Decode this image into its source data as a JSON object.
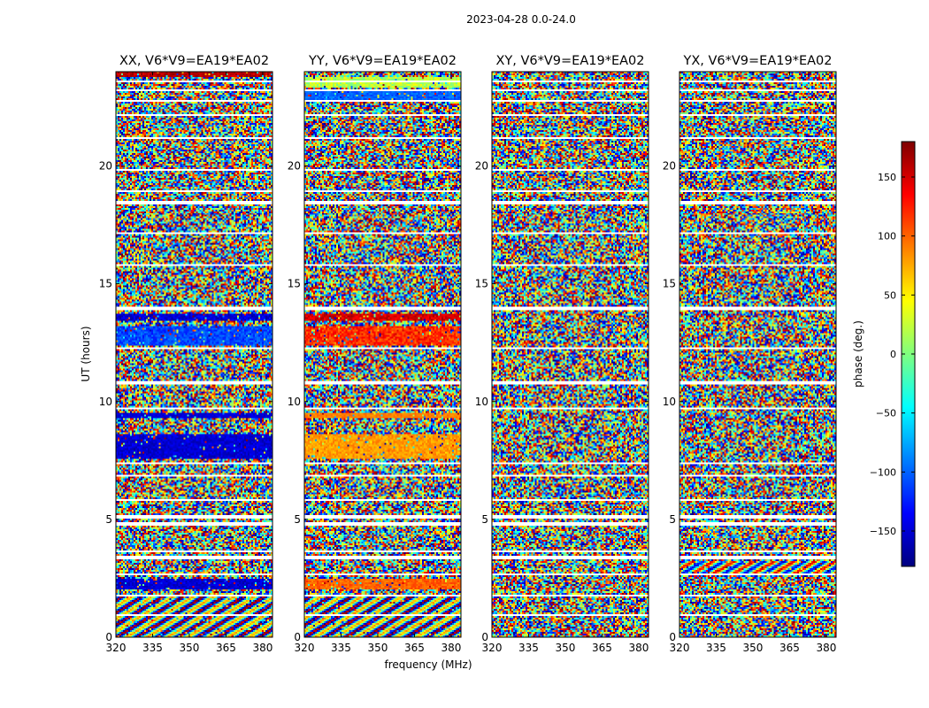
{
  "chart_data": {
    "type": "heatmap",
    "suptitle": "2023-04-28 0.0-24.0",
    "xlabel": "frequency (MHz)",
    "ylabel": "UT (hours)",
    "xlim": [
      320,
      384
    ],
    "ylim": [
      0,
      24
    ],
    "xticks": [
      320,
      335,
      350,
      365,
      380
    ],
    "yticks": [
      0,
      5,
      10,
      15,
      20
    ],
    "colorbar": {
      "label": "phase (deg.)",
      "range": [
        -180,
        180
      ],
      "ticks": [
        "150",
        "100",
        "50",
        "0",
        "−50",
        "−100",
        "−150"
      ],
      "tick_values": [
        150,
        100,
        50,
        0,
        -50,
        -100,
        -150
      ],
      "colormap": "jet",
      "stops": [
        "#00007f",
        "#0000ff",
        "#007fff",
        "#00ffff",
        "#7fff7f",
        "#ffff00",
        "#ff7f00",
        "#ff0000",
        "#7f0000"
      ]
    },
    "panels": [
      {
        "title": "XX, V6*V9=EA19*EA02",
        "coherent_bands": [
          {
            "ut": [
              0.0,
              1.8
            ],
            "phase": -60,
            "spread": 30,
            "pattern": "fringe"
          },
          {
            "ut": [
              2.0,
              2.5
            ],
            "phase": -150,
            "spread": 15
          },
          {
            "ut": [
              7.6,
              8.6
            ],
            "phase": -150,
            "spread": 15
          },
          {
            "ut": [
              9.3,
              9.5
            ],
            "phase": -150,
            "spread": 10
          },
          {
            "ut": [
              12.4,
              13.2
            ],
            "phase": -110,
            "spread": 20
          },
          {
            "ut": [
              13.4,
              13.7
            ],
            "phase": -150,
            "spread": 20
          },
          {
            "ut": [
              23.8,
              24.0
            ],
            "phase": 160,
            "spread": 15
          }
        ]
      },
      {
        "title": "YY, V6*V9=EA19*EA02",
        "coherent_bands": [
          {
            "ut": [
              0.0,
              1.8
            ],
            "phase": -60,
            "spread": 30,
            "pattern": "fringe"
          },
          {
            "ut": [
              2.0,
              2.5
            ],
            "phase": 100,
            "spread": 15
          },
          {
            "ut": [
              7.6,
              8.6
            ],
            "phase": 80,
            "spread": 15
          },
          {
            "ut": [
              9.3,
              9.5
            ],
            "phase": 90,
            "spread": 10
          },
          {
            "ut": [
              12.4,
              13.2
            ],
            "phase": 120,
            "spread": 25
          },
          {
            "ut": [
              13.4,
              13.7
            ],
            "phase": 150,
            "spread": 20
          },
          {
            "ut": [
              22.8,
              23.2
            ],
            "phase": -100,
            "spread": 15
          },
          {
            "ut": [
              23.3,
              23.8
            ],
            "phase": 20,
            "spread": 25
          }
        ]
      },
      {
        "title": "XY, V6*V9=EA19*EA02",
        "coherent_bands": []
      },
      {
        "title": "YX, V6*V9=EA19*EA02",
        "coherent_bands": [
          {
            "ut": [
              2.6,
              3.2
            ],
            "phase": 0,
            "spread": 50,
            "pattern": "fringe"
          }
        ]
      }
    ],
    "flagged_ut": [
      [
        0.9,
        1.0
      ],
      [
        1.7,
        1.8
      ],
      [
        2.6,
        2.7
      ],
      [
        3.3,
        3.45
      ],
      [
        3.6,
        3.7
      ],
      [
        4.7,
        4.85
      ],
      [
        5.05,
        5.15
      ],
      [
        5.8,
        5.85
      ],
      [
        6.8,
        6.9
      ],
      [
        7.35,
        7.45
      ],
      [
        8.75,
        8.8
      ],
      [
        9.65,
        9.75
      ],
      [
        10.7,
        10.85
      ],
      [
        12.2,
        12.3
      ],
      [
        13.9,
        14.0
      ],
      [
        15.75,
        15.85
      ],
      [
        17.1,
        17.2
      ],
      [
        18.4,
        18.55
      ],
      [
        18.9,
        18.95
      ],
      [
        19.8,
        19.85
      ],
      [
        21.15,
        21.25
      ],
      [
        22.1,
        22.2
      ],
      [
        22.7,
        22.8
      ],
      [
        23.2,
        23.25
      ],
      [
        23.55,
        23.6
      ]
    ]
  }
}
